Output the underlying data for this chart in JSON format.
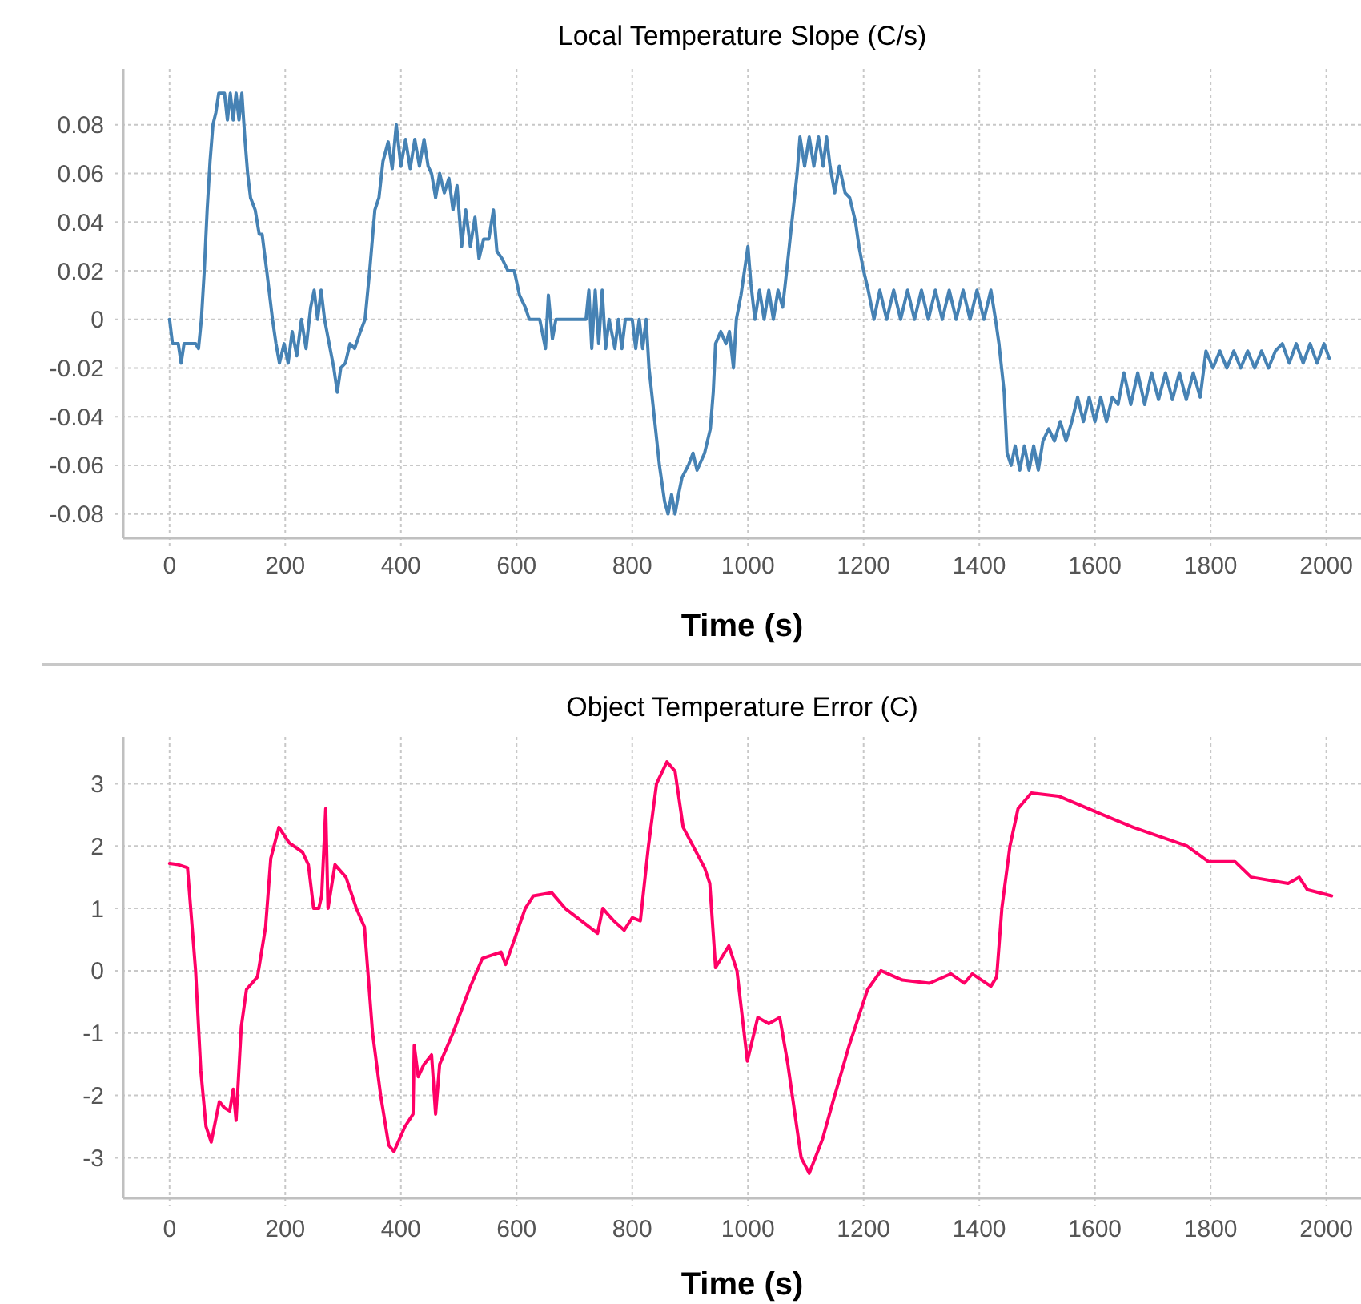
{
  "chart_data": [
    {
      "type": "line",
      "title": "Local Temperature Slope (C/s)",
      "xlabel": "Time (s)",
      "xlim": [
        -80,
        2060
      ],
      "ylim": [
        -0.09,
        0.103
      ],
      "xticks": [
        0,
        200,
        400,
        600,
        800,
        1000,
        1200,
        1400,
        1600,
        1800,
        2000
      ],
      "yticks": [
        -0.08,
        -0.06,
        -0.04,
        -0.02,
        0,
        0.02,
        0.04,
        0.06,
        0.08
      ],
      "grid": true,
      "marker": "none",
      "line_style": "solid",
      "series": [
        {
          "color": "#4682b4",
          "x": [
            0,
            5,
            15,
            20,
            25,
            45,
            50,
            55,
            60,
            65,
            70,
            75,
            80,
            85,
            95,
            100,
            105,
            110,
            115,
            120,
            125,
            130,
            135,
            140,
            148,
            155,
            160,
            168,
            178,
            184,
            190,
            198,
            205,
            212,
            220,
            228,
            236,
            244,
            250,
            256,
            262,
            268,
            276,
            284,
            290,
            296,
            304,
            312,
            320,
            330,
            338,
            346,
            355,
            362,
            369,
            378,
            385,
            392,
            400,
            408,
            416,
            424,
            432,
            440,
            447,
            453,
            460,
            467,
            475,
            483,
            490,
            497,
            505,
            512,
            520,
            528,
            535,
            543,
            552,
            560,
            566,
            575,
            585,
            596,
            605,
            615,
            622,
            640,
            650,
            655,
            662,
            668,
            720,
            725,
            730,
            736,
            742,
            748,
            754,
            760,
            770,
            776,
            782,
            788,
            800,
            806,
            812,
            818,
            824,
            829,
            838,
            847,
            856,
            862,
            868,
            874,
            880,
            886,
            897,
            905,
            912,
            925,
            935,
            940,
            944,
            953,
            962,
            968,
            975,
            980,
            988,
            994,
            1000,
            1005,
            1012,
            1020,
            1028,
            1036,
            1044,
            1052,
            1060,
            1067,
            1076,
            1085,
            1090,
            1098,
            1106,
            1114,
            1122,
            1130,
            1136,
            1142,
            1150,
            1158,
            1168,
            1176,
            1186,
            1192,
            1200,
            1208,
            1218,
            1228,
            1240,
            1252,
            1264,
            1276,
            1288,
            1300,
            1312,
            1324,
            1336,
            1348,
            1360,
            1372,
            1384,
            1396,
            1408,
            1420,
            1428,
            1434,
            1443,
            1448,
            1455,
            1462,
            1470,
            1478,
            1486,
            1494,
            1502,
            1510,
            1520,
            1530,
            1540,
            1550,
            1560,
            1570,
            1580,
            1590,
            1600,
            1610,
            1620,
            1630,
            1640,
            1650,
            1662,
            1674,
            1686,
            1698,
            1710,
            1722,
            1734,
            1746,
            1758,
            1770,
            1782,
            1792,
            1804,
            1816,
            1828,
            1840,
            1852,
            1864,
            1876,
            1888,
            1900,
            1912,
            1924,
            1936,
            1948,
            1960,
            1972,
            1984,
            1996,
            2005
          ],
          "values": [
            0,
            -0.01,
            -0.01,
            -0.018,
            -0.01,
            -0.01,
            -0.012,
            0,
            0.02,
            0.045,
            0.065,
            0.08,
            0.085,
            0.093,
            0.093,
            0.082,
            0.093,
            0.082,
            0.093,
            0.082,
            0.093,
            0.075,
            0.06,
            0.05,
            0.045,
            0.035,
            0.035,
            0.02,
            0,
            -0.01,
            -0.018,
            -0.01,
            -0.018,
            -0.005,
            -0.015,
            0,
            -0.012,
            0.005,
            0.012,
            0,
            0.012,
            0,
            -0.01,
            -0.02,
            -0.03,
            -0.02,
            -0.018,
            -0.01,
            -0.012,
            -0.005,
            0,
            0.02,
            0.045,
            0.05,
            0.065,
            0.073,
            0.062,
            0.08,
            0.063,
            0.074,
            0.062,
            0.074,
            0.063,
            0.074,
            0.063,
            0.06,
            0.05,
            0.06,
            0.052,
            0.058,
            0.045,
            0.055,
            0.03,
            0.045,
            0.03,
            0.042,
            0.025,
            0.033,
            0.033,
            0.045,
            0.028,
            0.025,
            0.02,
            0.02,
            0.01,
            0.005,
            0,
            0,
            -0.012,
            0.01,
            -0.008,
            0,
            0,
            0.012,
            -0.012,
            0.012,
            -0.01,
            0.012,
            -0.012,
            0,
            -0.012,
            0,
            -0.012,
            0,
            0,
            -0.012,
            0,
            -0.012,
            0,
            -0.02,
            -0.04,
            -0.06,
            -0.075,
            -0.08,
            -0.072,
            -0.08,
            -0.072,
            -0.065,
            -0.06,
            -0.055,
            -0.062,
            -0.055,
            -0.045,
            -0.03,
            -0.01,
            -0.005,
            -0.01,
            -0.005,
            -0.02,
            0,
            0.01,
            0.02,
            0.03,
            0.015,
            0,
            0.012,
            0,
            0.012,
            0,
            0.012,
            0.005,
            0.02,
            0.04,
            0.06,
            0.075,
            0.063,
            0.075,
            0.063,
            0.075,
            0.063,
            0.075,
            0.063,
            0.052,
            0.063,
            0.052,
            0.05,
            0.04,
            0.03,
            0.02,
            0.012,
            0,
            0.012,
            0,
            0.012,
            0,
            0.012,
            0,
            0.012,
            0,
            0.012,
            0,
            0.012,
            0,
            0.012,
            0,
            0.012,
            0,
            0.012,
            0,
            -0.01,
            -0.03,
            -0.055,
            -0.06,
            -0.052,
            -0.062,
            -0.052,
            -0.062,
            -0.052,
            -0.062,
            -0.05,
            -0.045,
            -0.05,
            -0.042,
            -0.05,
            -0.042,
            -0.032,
            -0.042,
            -0.032,
            -0.042,
            -0.032,
            -0.042,
            -0.032,
            -0.035,
            -0.022,
            -0.035,
            -0.022,
            -0.035,
            -0.022,
            -0.033,
            -0.022,
            -0.033,
            -0.022,
            -0.033,
            -0.022,
            -0.032,
            -0.013,
            -0.02,
            -0.013,
            -0.02,
            -0.013,
            -0.02,
            -0.013,
            -0.02,
            -0.013,
            -0.02,
            -0.013,
            -0.01,
            -0.018,
            -0.01,
            -0.018,
            -0.01,
            -0.018,
            -0.01,
            -0.016
          ]
        }
      ]
    },
    {
      "type": "line",
      "title": "Object Temperature Error (C)",
      "xlabel": "Time (s)",
      "xlim": [
        -80,
        2060
      ],
      "ylim": [
        -3.65,
        3.75
      ],
      "xticks": [
        0,
        200,
        400,
        600,
        800,
        1000,
        1200,
        1400,
        1600,
        1800,
        2000
      ],
      "yticks": [
        -3,
        -2,
        -1,
        0,
        1,
        2,
        3
      ],
      "grid": true,
      "marker": "none",
      "line_style": "solid",
      "series": [
        {
          "color": "#ff0066",
          "x": [
            0,
            15,
            31,
            45,
            54,
            63,
            72,
            86,
            95,
            104,
            110,
            115,
            124,
            133,
            152,
            166,
            175,
            189,
            207,
            230,
            240,
            249,
            258,
            263,
            270,
            274,
            286,
            305,
            323,
            337,
            351,
            365,
            379,
            388,
            407,
            421,
            423,
            430,
            440,
            453,
            460,
            467,
            490,
            518,
            541,
            573,
            581,
            615,
            629,
            661,
            684,
            740,
            749,
            768,
            786,
            800,
            814,
            828,
            842,
            860,
            874,
            888,
            925,
            934,
            944,
            967,
            981,
            999,
            1017,
            1036,
            1055,
            1069,
            1092,
            1106,
            1129,
            1147,
            1175,
            1207,
            1230,
            1267,
            1314,
            1351,
            1374,
            1388,
            1420,
            1430,
            1439,
            1453,
            1467,
            1490,
            1537,
            1601,
            1666,
            1759,
            1796,
            1842,
            1870,
            1934,
            1953,
            1967,
            2009
          ],
          "values": [
            1.72,
            1.7,
            1.65,
            0,
            -1.6,
            -2.5,
            -2.75,
            -2.1,
            -2.2,
            -2.25,
            -1.9,
            -2.4,
            -0.9,
            -0.3,
            -0.1,
            0.7,
            1.8,
            2.3,
            2.05,
            1.9,
            1.7,
            1.0,
            1.0,
            1.2,
            2.6,
            1.0,
            1.7,
            1.5,
            1.0,
            0.7,
            -1.0,
            -2.0,
            -2.8,
            -2.9,
            -2.5,
            -2.3,
            -1.2,
            -1.7,
            -1.5,
            -1.35,
            -2.3,
            -1.5,
            -1.0,
            -0.3,
            0.2,
            0.3,
            0.1,
            1.0,
            1.2,
            1.25,
            1.0,
            0.6,
            1.0,
            0.8,
            0.65,
            0.85,
            0.8,
            2.0,
            3.0,
            3.35,
            3.2,
            2.3,
            1.65,
            1.4,
            0.05,
            0.4,
            0,
            -1.45,
            -0.75,
            -0.85,
            -0.75,
            -1.5,
            -3.0,
            -3.25,
            -2.7,
            -2.1,
            -1.2,
            -0.3,
            0,
            -0.15,
            -0.2,
            -0.05,
            -0.2,
            -0.05,
            -0.25,
            -0.1,
            1.0,
            2.0,
            2.6,
            2.85,
            2.8,
            2.55,
            2.3,
            2.0,
            1.75,
            1.75,
            1.5,
            1.4,
            1.5,
            1.3,
            1.2
          ]
        }
      ]
    }
  ]
}
